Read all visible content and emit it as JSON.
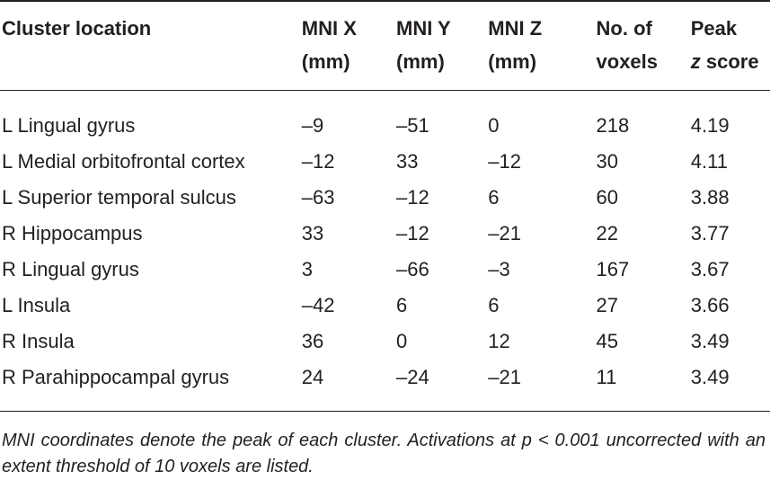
{
  "table": {
    "headers": [
      {
        "line1": "Cluster location",
        "line2": ""
      },
      {
        "line1": "MNI X",
        "line2": "(mm)"
      },
      {
        "line1": "MNI Y",
        "line2": "(mm)"
      },
      {
        "line1": "MNI Z",
        "line2": "(mm)"
      },
      {
        "line1": "No. of",
        "line2": "voxels"
      },
      {
        "line1": "Peak",
        "line2_italic": "z",
        "line2_rest": " score"
      }
    ],
    "rows": [
      [
        "L Lingual gyrus",
        "–9",
        "–51",
        "0",
        "218",
        "4.19"
      ],
      [
        "L Medial orbitofrontal cortex",
        "–12",
        "33",
        "–12",
        "30",
        "4.11"
      ],
      [
        "L Superior temporal sulcus",
        "–63",
        "–12",
        "6",
        "60",
        "3.88"
      ],
      [
        "R Hippocampus",
        "33",
        "–12",
        "–21",
        "22",
        "3.77"
      ],
      [
        "R Lingual gyrus",
        "3",
        "–66",
        "–3",
        "167",
        "3.67"
      ],
      [
        "L Insula",
        "–42",
        "6",
        "6",
        "27",
        "3.66"
      ],
      [
        "R Insula",
        "36",
        "0",
        "12",
        "45",
        "3.49"
      ],
      [
        "R Parahippocampal gyrus",
        "24",
        "–24",
        "–21",
        "11",
        "3.49"
      ]
    ]
  },
  "footnote": "MNI coordinates denote the peak of each cluster. Activations at p < 0.001 uncorrected with an extent threshold of 10 voxels are listed."
}
